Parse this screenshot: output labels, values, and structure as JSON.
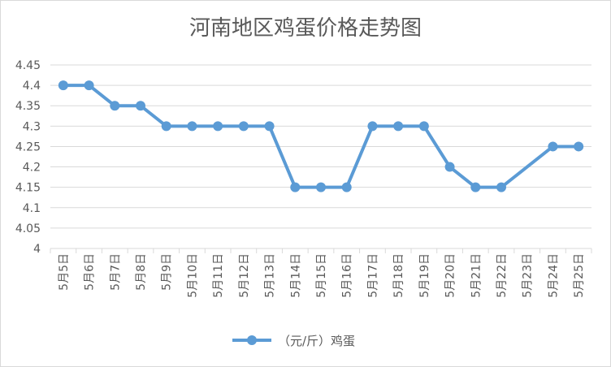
{
  "chart_data": {
    "type": "line",
    "title": "河南地区鸡蛋价格走势图",
    "categories": [
      "5月5日",
      "5月6日",
      "5月7日",
      "5月8日",
      "5月9日",
      "5月10日",
      "5月11日",
      "5月12日",
      "5月13日",
      "5月14日",
      "5月15日",
      "5月16日",
      "5月17日",
      "5月18日",
      "5月19日",
      "5月20日",
      "5月21日",
      "5月22日",
      "5月23日",
      "5月24日",
      "5月25日"
    ],
    "series": [
      {
        "name": "（元/斤）鸡蛋",
        "color": "#5b9bd5",
        "values": [
          4.4,
          4.4,
          4.35,
          4.35,
          4.3,
          4.3,
          4.3,
          4.3,
          4.3,
          4.15,
          4.15,
          4.15,
          4.3,
          4.3,
          4.3,
          4.2,
          4.15,
          4.15,
          null,
          4.25,
          4.25
        ]
      }
    ],
    "y_ticks": [
      "4.45",
      "4.4",
      "4.35",
      "4.3",
      "4.25",
      "4.2",
      "4.15",
      "4.1",
      "4.05",
      "4"
    ],
    "ylim": [
      4,
      4.45
    ],
    "xlabel": "",
    "ylabel": "",
    "grid": true,
    "legend": "bottom"
  }
}
